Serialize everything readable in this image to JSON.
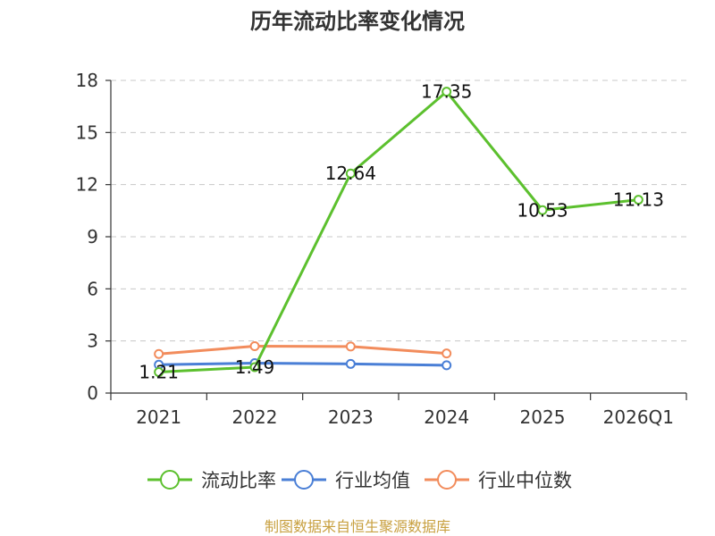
{
  "chart_data": {
    "type": "line",
    "title": "历年流动比率变化情况",
    "categories": [
      "2021",
      "2022",
      "2023",
      "2024",
      "2025",
      "2026Q1"
    ],
    "ylim": [
      0,
      18
    ],
    "yticks": [
      0,
      3,
      6,
      9,
      12,
      15,
      18
    ],
    "grid": true,
    "legend_position": "bottom",
    "series": [
      {
        "name": "流动比率",
        "color": "#5cc02e",
        "values": [
          1.21,
          1.49,
          12.64,
          17.35,
          10.53,
          11.13
        ],
        "labels": [
          "1.21",
          "1.49",
          "12.64",
          "17.35",
          "10.53",
          "11.13"
        ]
      },
      {
        "name": "行业均值",
        "color": "#4a7fd6",
        "values": [
          1.63,
          1.72,
          1.68,
          1.6,
          null,
          null
        ]
      },
      {
        "name": "行业中位数",
        "color": "#f28c5c",
        "values": [
          2.25,
          2.7,
          2.68,
          2.28,
          null,
          null
        ]
      }
    ]
  },
  "source": "制图数据来自恒生聚源数据库"
}
